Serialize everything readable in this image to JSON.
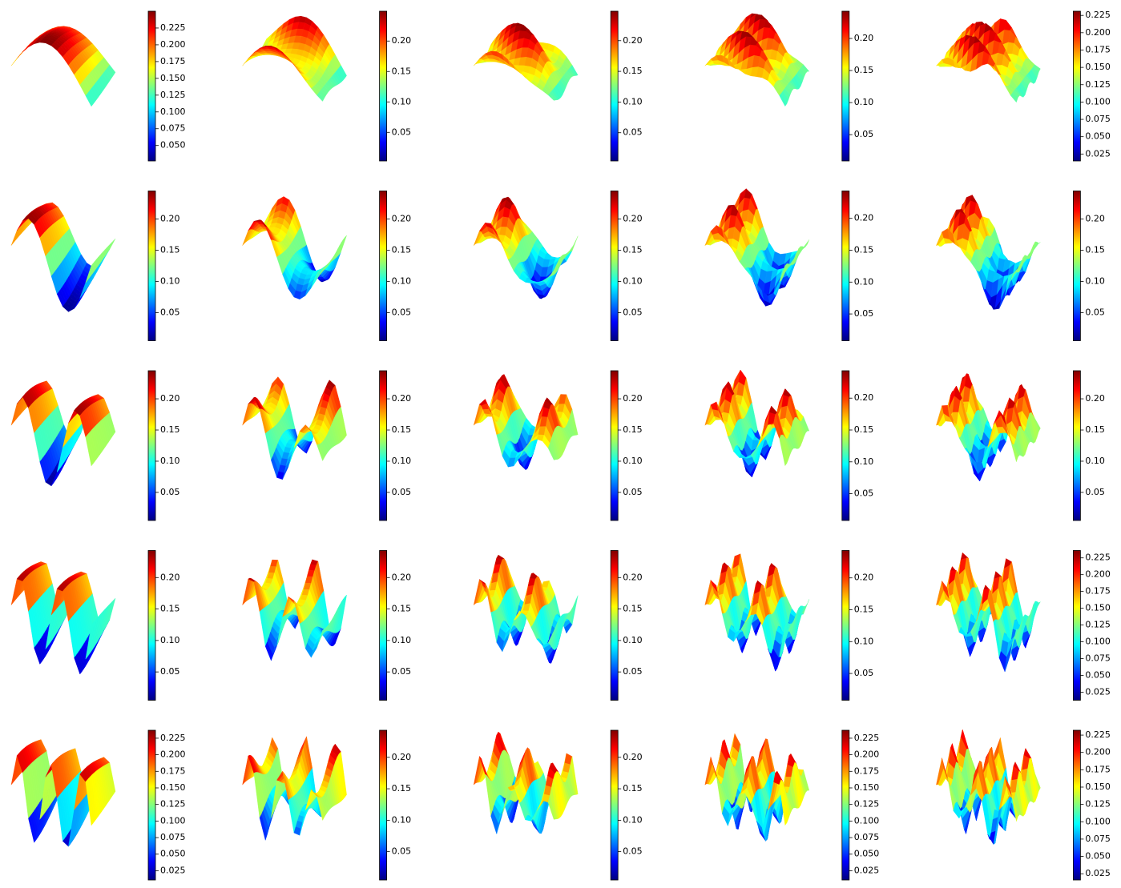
{
  "chart_data": [
    {
      "type": "surface",
      "colormap": "jet",
      "colorbar": {
        "lim": [
          0.027,
          0.25
        ],
        "ticks": [
          {
            "value": 0.05,
            "label": "0.050"
          },
          0.075,
          {
            "value": 0.1,
            "label": "0.100"
          },
          0.125,
          {
            "value": 0.15,
            "label": "0.150"
          },
          0.175,
          {
            "value": 0.2,
            "label": "0.200"
          },
          0.225
        ]
      }
    },
    {
      "type": "surface",
      "colormap": "jet",
      "colorbar": {
        "lim": [
          0.003,
          0.249
        ],
        "ticks": [
          0.05,
          {
            "value": 0.1,
            "label": "0.10"
          },
          0.15,
          {
            "value": 0.2,
            "label": "0.20"
          }
        ]
      }
    },
    {
      "type": "surface",
      "colormap": "jet",
      "colorbar": {
        "lim": [
          0.004,
          0.248
        ],
        "ticks": [
          0.05,
          {
            "value": 0.1,
            "label": "0.10"
          },
          0.15,
          {
            "value": 0.2,
            "label": "0.20"
          }
        ]
      }
    },
    {
      "type": "surface",
      "colormap": "jet",
      "colorbar": {
        "lim": [
          0.009,
          0.2425
        ],
        "ticks": [
          0.05,
          {
            "value": 0.1,
            "label": "0.10"
          },
          0.15,
          {
            "value": 0.2,
            "label": "0.20"
          }
        ]
      }
    },
    {
      "type": "surface",
      "colormap": "jet",
      "colorbar": {
        "lim": [
          0.015,
          0.231
        ],
        "ticks": [
          0.025,
          {
            "value": 0.05,
            "label": "0.050"
          },
          0.075,
          {
            "value": 0.1,
            "label": "0.100"
          },
          0.125,
          {
            "value": 0.15,
            "label": "0.150"
          },
          0.175,
          {
            "value": 0.2,
            "label": "0.200"
          },
          0.225
        ]
      }
    },
    {
      "type": "surface",
      "colormap": "jet",
      "colorbar": {
        "lim": [
          0.005,
          0.245
        ],
        "ticks": [
          0.05,
          {
            "value": 0.1,
            "label": "0.10"
          },
          0.15,
          {
            "value": 0.2,
            "label": "0.20"
          }
        ]
      }
    },
    {
      "type": "surface",
      "colormap": "jet",
      "colorbar": {
        "lim": [
          0.005,
          0.245
        ],
        "ticks": [
          0.05,
          {
            "value": 0.1,
            "label": "0.10"
          },
          0.15,
          {
            "value": 0.2,
            "label": "0.20"
          }
        ]
      }
    },
    {
      "type": "surface",
      "colormap": "jet",
      "colorbar": {
        "lim": [
          0.005,
          0.245
        ],
        "ticks": [
          0.05,
          {
            "value": 0.1,
            "label": "0.10"
          },
          0.15,
          {
            "value": 0.2,
            "label": "0.20"
          }
        ]
      }
    },
    {
      "type": "surface",
      "colormap": "jet",
      "colorbar": {
        "lim": [
          0.008,
          0.243
        ],
        "ticks": [
          0.05,
          {
            "value": 0.1,
            "label": "0.10"
          },
          0.15,
          {
            "value": 0.2,
            "label": "0.20"
          }
        ]
      }
    },
    {
      "type": "surface",
      "colormap": "jet",
      "colorbar": {
        "lim": [
          0.005,
          0.245
        ],
        "ticks": [
          0.05,
          {
            "value": 0.1,
            "label": "0.10"
          },
          0.15,
          {
            "value": 0.2,
            "label": "0.20"
          }
        ]
      }
    },
    {
      "type": "surface",
      "colormap": "jet",
      "colorbar": {
        "lim": [
          0.005,
          0.245
        ],
        "ticks": [
          0.05,
          {
            "value": 0.1,
            "label": "0.10"
          },
          0.15,
          {
            "value": 0.2,
            "label": "0.20"
          }
        ]
      }
    },
    {
      "type": "surface",
      "colormap": "jet",
      "colorbar": {
        "lim": [
          0.005,
          0.245
        ],
        "ticks": [
          0.05,
          {
            "value": 0.1,
            "label": "0.10"
          },
          0.15,
          {
            "value": 0.2,
            "label": "0.20"
          }
        ]
      }
    },
    {
      "type": "surface",
      "colormap": "jet",
      "colorbar": {
        "lim": [
          0.005,
          0.245
        ],
        "ticks": [
          0.05,
          {
            "value": 0.1,
            "label": "0.10"
          },
          0.15,
          {
            "value": 0.2,
            "label": "0.20"
          }
        ]
      }
    },
    {
      "type": "surface",
      "colormap": "jet",
      "colorbar": {
        "lim": [
          0.008,
          0.243
        ],
        "ticks": [
          0.05,
          {
            "value": 0.1,
            "label": "0.10"
          },
          0.15,
          {
            "value": 0.2,
            "label": "0.20"
          }
        ]
      }
    },
    {
      "type": "surface",
      "colormap": "jet",
      "colorbar": {
        "lim": [
          0.005,
          0.245
        ],
        "ticks": [
          0.05,
          {
            "value": 0.1,
            "label": "0.10"
          },
          0.15,
          {
            "value": 0.2,
            "label": "0.20"
          }
        ]
      }
    },
    {
      "type": "surface",
      "colormap": "jet",
      "colorbar": {
        "lim": [
          0.005,
          0.243
        ],
        "ticks": [
          0.05,
          {
            "value": 0.1,
            "label": "0.10"
          },
          0.15,
          {
            "value": 0.2,
            "label": "0.20"
          }
        ]
      }
    },
    {
      "type": "surface",
      "colormap": "jet",
      "colorbar": {
        "lim": [
          0.005,
          0.243
        ],
        "ticks": [
          0.05,
          {
            "value": 0.1,
            "label": "0.10"
          },
          0.15,
          {
            "value": 0.2,
            "label": "0.20"
          }
        ]
      }
    },
    {
      "type": "surface",
      "colormap": "jet",
      "colorbar": {
        "lim": [
          0.005,
          0.243
        ],
        "ticks": [
          0.05,
          {
            "value": 0.1,
            "label": "0.10"
          },
          0.15,
          {
            "value": 0.2,
            "label": "0.20"
          }
        ]
      }
    },
    {
      "type": "surface",
      "colormap": "jet",
      "colorbar": {
        "lim": [
          0.008,
          0.243
        ],
        "ticks": [
          0.05,
          {
            "value": 0.1,
            "label": "0.10"
          },
          0.15,
          {
            "value": 0.2,
            "label": "0.20"
          }
        ]
      }
    },
    {
      "type": "surface",
      "colormap": "jet",
      "colorbar": {
        "lim": [
          0.013,
          0.236
        ],
        "ticks": [
          0.025,
          {
            "value": 0.05,
            "label": "0.050"
          },
          0.075,
          {
            "value": 0.1,
            "label": "0.100"
          },
          0.125,
          {
            "value": 0.15,
            "label": "0.150"
          },
          0.175,
          {
            "value": 0.2,
            "label": "0.200"
          },
          0.225
        ]
      }
    },
    {
      "type": "surface",
      "colormap": "jet",
      "colorbar": {
        "lim": [
          0.011,
          0.237
        ],
        "ticks": [
          0.025,
          {
            "value": 0.05,
            "label": "0.050"
          },
          0.075,
          {
            "value": 0.1,
            "label": "0.100"
          },
          0.125,
          {
            "value": 0.15,
            "label": "0.150"
          },
          0.175,
          {
            "value": 0.2,
            "label": "0.200"
          },
          0.225
        ]
      }
    },
    {
      "type": "surface",
      "colormap": "jet",
      "colorbar": {
        "lim": [
          0.005,
          0.243
        ],
        "ticks": [
          0.05,
          {
            "value": 0.1,
            "label": "0.10"
          },
          0.15,
          {
            "value": 0.2,
            "label": "0.20"
          }
        ]
      }
    },
    {
      "type": "surface",
      "colormap": "jet",
      "colorbar": {
        "lim": [
          0.005,
          0.243
        ],
        "ticks": [
          0.05,
          {
            "value": 0.1,
            "label": "0.10"
          },
          0.15,
          {
            "value": 0.2,
            "label": "0.20"
          }
        ]
      }
    },
    {
      "type": "surface",
      "colormap": "jet",
      "colorbar": {
        "lim": [
          0.011,
          0.237
        ],
        "ticks": [
          0.025,
          {
            "value": 0.05,
            "label": "0.050"
          },
          0.075,
          {
            "value": 0.1,
            "label": "0.100"
          },
          0.125,
          {
            "value": 0.15,
            "label": "0.150"
          },
          0.175,
          {
            "value": 0.2,
            "label": "0.200"
          },
          0.225
        ]
      }
    },
    {
      "type": "surface",
      "colormap": "jet",
      "colorbar": {
        "lim": [
          0.016,
          0.232
        ],
        "ticks": [
          0.025,
          {
            "value": 0.05,
            "label": "0.050"
          },
          0.075,
          {
            "value": 0.1,
            "label": "0.100"
          },
          0.125,
          {
            "value": 0.15,
            "label": "0.150"
          },
          0.175,
          {
            "value": 0.2,
            "label": "0.200"
          },
          0.225
        ]
      }
    }
  ]
}
